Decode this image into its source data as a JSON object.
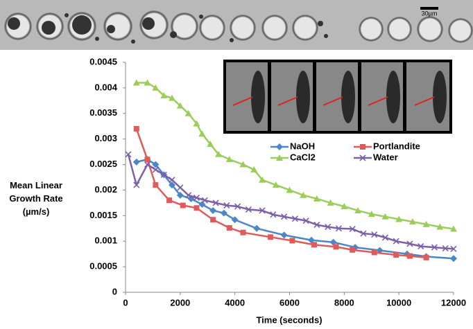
{
  "chart_data": {
    "type": "line",
    "scale_bar_label": "30µm",
    "x_label": "Time (seconds)",
    "y_label": "Mean Linear Growth Rate (µm/s)",
    "xlim": [
      0,
      12000
    ],
    "xticks": [
      0,
      2000,
      4000,
      6000,
      8000,
      10000,
      12000
    ],
    "ylim": [
      0,
      0.0045
    ],
    "yticks": [
      0,
      0.0005,
      0.001,
      0.0015,
      0.002,
      0.0025,
      0.003,
      0.0035,
      0.004,
      0.0045
    ],
    "series": [
      {
        "name": "NaOH",
        "color": "#4a86c8",
        "marker": "diamond",
        "x": [
          400,
          800,
          1100,
          1400,
          1700,
          2000,
          2400,
          2800,
          3200,
          3600,
          4000,
          4800,
          5800,
          6800,
          7600,
          8400,
          9300,
          10300,
          11000,
          12000
        ],
        "values": [
          0.00255,
          0.0026,
          0.0025,
          0.0023,
          0.0021,
          0.0019,
          0.00183,
          0.00172,
          0.0016,
          0.00155,
          0.00142,
          0.00125,
          0.00112,
          0.00102,
          0.00098,
          0.00088,
          0.00082,
          0.00075,
          0.0007,
          0.00066
        ]
      },
      {
        "name": "Portlandite",
        "color": "#e05a5a",
        "marker": "square",
        "x": [
          400,
          800,
          1100,
          1600,
          2100,
          2600,
          3200,
          3800,
          4300,
          5300,
          6100,
          6900,
          7700,
          8300,
          9100,
          9900,
          10400,
          11000
        ],
        "values": [
          0.0032,
          0.0026,
          0.0021,
          0.0018,
          0.0017,
          0.00165,
          0.00142,
          0.00126,
          0.00117,
          0.00108,
          0.00101,
          0.00093,
          0.00089,
          0.00083,
          0.00078,
          0.00073,
          0.00071,
          0.00068
        ]
      },
      {
        "name": "CaCl2",
        "color": "#9bcd5a",
        "marker": "triangle",
        "x": [
          400,
          800,
          1100,
          1400,
          1700,
          2000,
          2300,
          2600,
          2800,
          3100,
          3400,
          3800,
          4300,
          4700,
          5000,
          5500,
          6000,
          6500,
          7000,
          7500,
          8000,
          8500,
          9000,
          9500,
          10000,
          10500,
          11000,
          11500,
          12000
        ],
        "values": [
          0.0041,
          0.0041,
          0.004,
          0.00385,
          0.0038,
          0.00365,
          0.0035,
          0.0033,
          0.0031,
          0.0029,
          0.0027,
          0.0026,
          0.0025,
          0.0024,
          0.0022,
          0.0021,
          0.002,
          0.0019,
          0.00183,
          0.00175,
          0.00168,
          0.0016,
          0.00153,
          0.00148,
          0.00143,
          0.00138,
          0.00133,
          0.00128,
          0.00124
        ]
      },
      {
        "name": "Water",
        "color": "#7b5fa8",
        "marker": "x",
        "x": [
          100,
          400,
          800,
          1100,
          1400,
          1700,
          2000,
          2300,
          2600,
          2900,
          3300,
          3700,
          4100,
          4500,
          5000,
          5400,
          5800,
          6200,
          6600,
          7000,
          7400,
          7800,
          8300,
          8700,
          9100,
          9500,
          9900,
          10400,
          10800,
          11300,
          11700,
          12000
        ],
        "values": [
          0.0027,
          0.0021,
          0.0025,
          0.0024,
          0.0023,
          0.0022,
          0.00205,
          0.0019,
          0.00185,
          0.0018,
          0.00175,
          0.0017,
          0.00168,
          0.00162,
          0.0016,
          0.00152,
          0.00148,
          0.00144,
          0.0014,
          0.00132,
          0.00128,
          0.00125,
          0.00124,
          0.00115,
          0.00113,
          0.00107,
          0.001,
          0.00095,
          0.0009,
          0.00088,
          0.00086,
          0.00085
        ]
      }
    ]
  }
}
